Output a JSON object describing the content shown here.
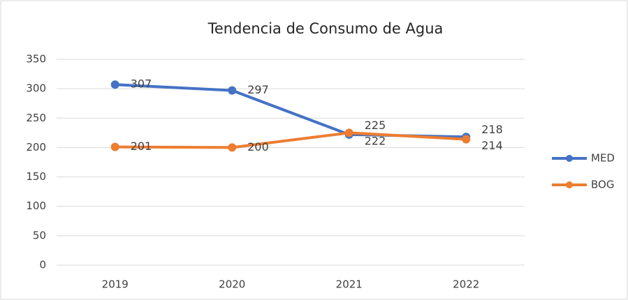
{
  "chart_data": {
    "type": "line",
    "title": "Tendencia de Consumo de Agua",
    "categories": [
      "2019",
      "2020",
      "2021",
      "2022"
    ],
    "series": [
      {
        "name": "MED",
        "color": "#4472c4",
        "values": [
          307,
          297,
          222,
          218
        ]
      },
      {
        "name": "BOG",
        "color": "#ed7d31",
        "values": [
          201,
          200,
          225,
          214
        ]
      }
    ],
    "ylim": [
      0,
      350
    ],
    "yticks": [
      0,
      50,
      100,
      150,
      200,
      250,
      300,
      350
    ],
    "grid": true,
    "legend": "right"
  }
}
